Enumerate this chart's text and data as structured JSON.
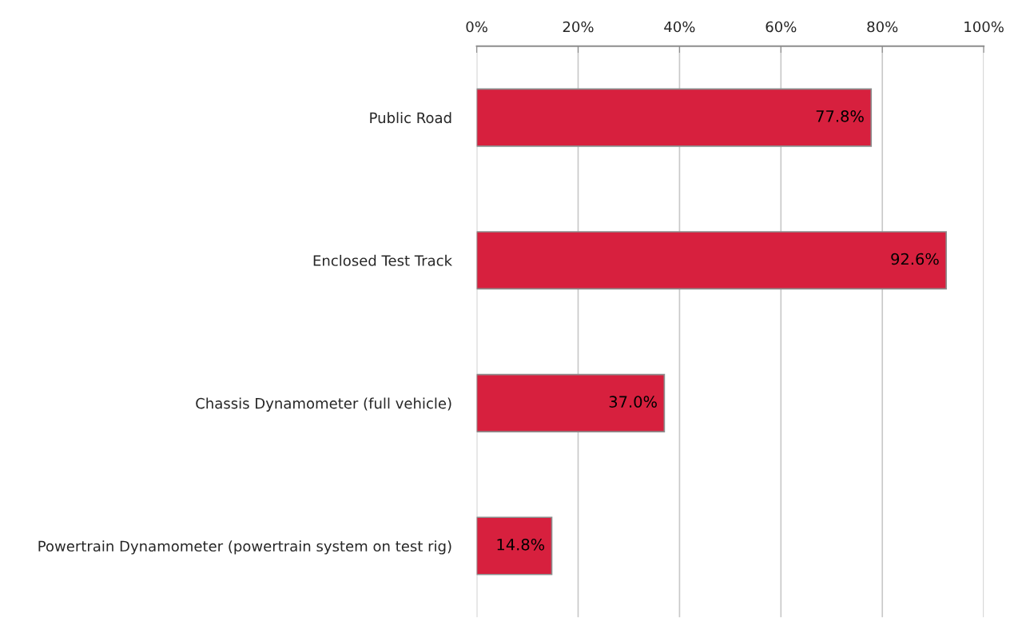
{
  "chart_data": {
    "type": "bar",
    "orientation": "horizontal",
    "categories": [
      "Public Road",
      "Enclosed Test Track",
      "Chassis Dynamometer (full vehicle)",
      "Powertrain Dynamometer (powertrain system on test rig)"
    ],
    "values": [
      77.8,
      92.6,
      37.0,
      14.8
    ],
    "value_labels": [
      "77.8%",
      "92.6%",
      "37.0%",
      "14.8%"
    ],
    "color": "#d7203e",
    "xlim": [
      0,
      100
    ],
    "xticks": [
      {
        "value": 0,
        "label": "0%"
      },
      {
        "value": 20,
        "label": "20%"
      },
      {
        "value": 40,
        "label": "40%"
      },
      {
        "value": 60,
        "label": "60%"
      },
      {
        "value": 80,
        "label": "80%"
      },
      {
        "value": 100,
        "label": "100%"
      }
    ],
    "grid": "x",
    "legend": false
  }
}
